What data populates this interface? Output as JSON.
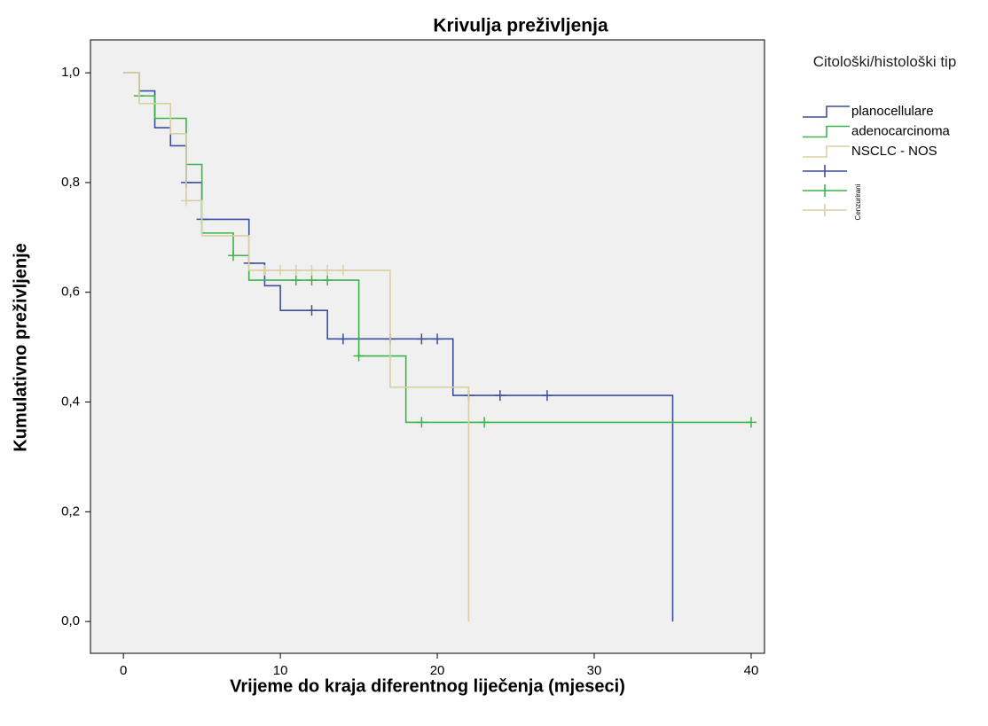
{
  "chart_data": {
    "type": "kaplan-meier",
    "title": "Krivulja preživljenja",
    "x_label": "Vrijeme do kraja diferentnog liječenja (mjeseci)",
    "y_label": "Kumulativno preživljenje",
    "legend_title": "Citološki/histološki tip",
    "censored_label": "Cenzurirani",
    "xlim": [
      -2.1,
      40.85
    ],
    "ylim": [
      -0.058,
      1.06
    ],
    "xticks": [
      0,
      10,
      20,
      30,
      40
    ],
    "yticks": [
      {
        "value": 0,
        "label": "0,0"
      },
      {
        "value": 0.2,
        "label": "0,2"
      },
      {
        "value": 0.4,
        "label": "0,4"
      },
      {
        "value": 0.6,
        "label": "0,6"
      },
      {
        "value": 0.8,
        "label": "0,8"
      },
      {
        "value": 1,
        "label": "1,0"
      }
    ],
    "series": [
      {
        "name": "planocellulare",
        "color": "#3d4f9f",
        "x": [
          0,
          1,
          2,
          3,
          4,
          5,
          8,
          9,
          10,
          13,
          21,
          35
        ],
        "values": [
          1,
          0.967,
          0.9,
          0.867,
          0.8,
          0.733,
          0.653,
          0.612,
          0.567,
          0.515,
          0.412,
          0
        ],
        "censored_x": [
          4,
          5,
          8,
          12,
          14,
          17,
          19,
          20,
          22,
          24,
          27
        ],
        "censored_values": [
          0.8,
          0.733,
          0.653,
          0.567,
          0.515,
          0.515,
          0.515,
          0.515,
          0.412,
          0.412,
          0.412
        ]
      },
      {
        "name": "adenocarcinoma",
        "color": "#3bb44a",
        "x": [
          0,
          1,
          2,
          4,
          5,
          7,
          8,
          15,
          18,
          40
        ],
        "values": [
          1,
          0.958,
          0.917,
          0.833,
          0.708,
          0.667,
          0.622,
          0.484,
          0.363,
          0.363
        ],
        "censored_x": [
          1,
          7,
          11,
          12,
          13,
          15,
          19,
          23,
          40
        ],
        "censored_values": [
          0.958,
          0.667,
          0.622,
          0.622,
          0.622,
          0.484,
          0.363,
          0.363,
          0.363
        ]
      },
      {
        "name": "NSCLC - NOS",
        "color": "#d8d0a2",
        "x": [
          0,
          1,
          3,
          4,
          5,
          8,
          17,
          22
        ],
        "values": [
          1,
          0.944,
          0.889,
          0.767,
          0.703,
          0.64,
          0.427,
          0
        ],
        "censored_x": [
          4,
          9,
          10,
          11,
          12,
          13,
          14
        ],
        "censored_values": [
          0.767,
          0.64,
          0.64,
          0.64,
          0.64,
          0.64,
          0.64
        ]
      }
    ]
  }
}
